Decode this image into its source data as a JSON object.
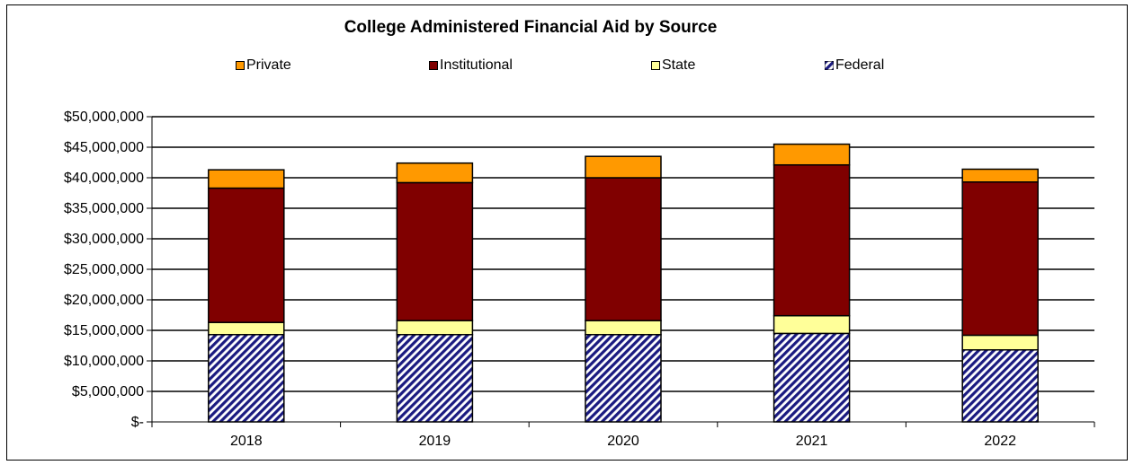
{
  "chart_data": {
    "type": "bar",
    "stacked": true,
    "title": "College Administered Financial Aid by Source",
    "xlabel": "",
    "ylabel": "",
    "categories": [
      "2018",
      "2019",
      "2020",
      "2021",
      "2022"
    ],
    "ylim": [
      0,
      50000000
    ],
    "yticks": [
      0,
      5000000,
      10000000,
      15000000,
      20000000,
      25000000,
      30000000,
      35000000,
      40000000,
      45000000,
      50000000
    ],
    "ytick_labels": [
      "$-",
      "$5,000,000",
      "$10,000,000",
      "$15,000,000",
      "$20,000,000",
      "$25,000,000",
      "$30,000,000",
      "$35,000,000",
      "$40,000,000",
      "$45,000,000",
      "$50,000,000"
    ],
    "grid": true,
    "legend_position": "top",
    "series": [
      {
        "name": "Federal",
        "color": "#1a1a80",
        "pattern": "diagonal-hatch",
        "values": [
          14300000,
          14300000,
          14300000,
          14500000,
          11800000
        ]
      },
      {
        "name": "State",
        "color": "#ffff99",
        "values": [
          2000000,
          2300000,
          2300000,
          2900000,
          2400000
        ]
      },
      {
        "name": "Institutional",
        "color": "#800000",
        "values": [
          22000000,
          22600000,
          23400000,
          24700000,
          25100000
        ]
      },
      {
        "name": "Private",
        "color": "#ff9900",
        "values": [
          3000000,
          3200000,
          3500000,
          3400000,
          2100000
        ]
      }
    ],
    "legend": [
      {
        "name": "Private",
        "color": "#ff9900"
      },
      {
        "name": "Institutional",
        "color": "#800000"
      },
      {
        "name": "State",
        "color": "#ffff99"
      },
      {
        "name": "Federal",
        "color": "#1a1a80",
        "pattern": "diagonal-hatch"
      }
    ]
  }
}
